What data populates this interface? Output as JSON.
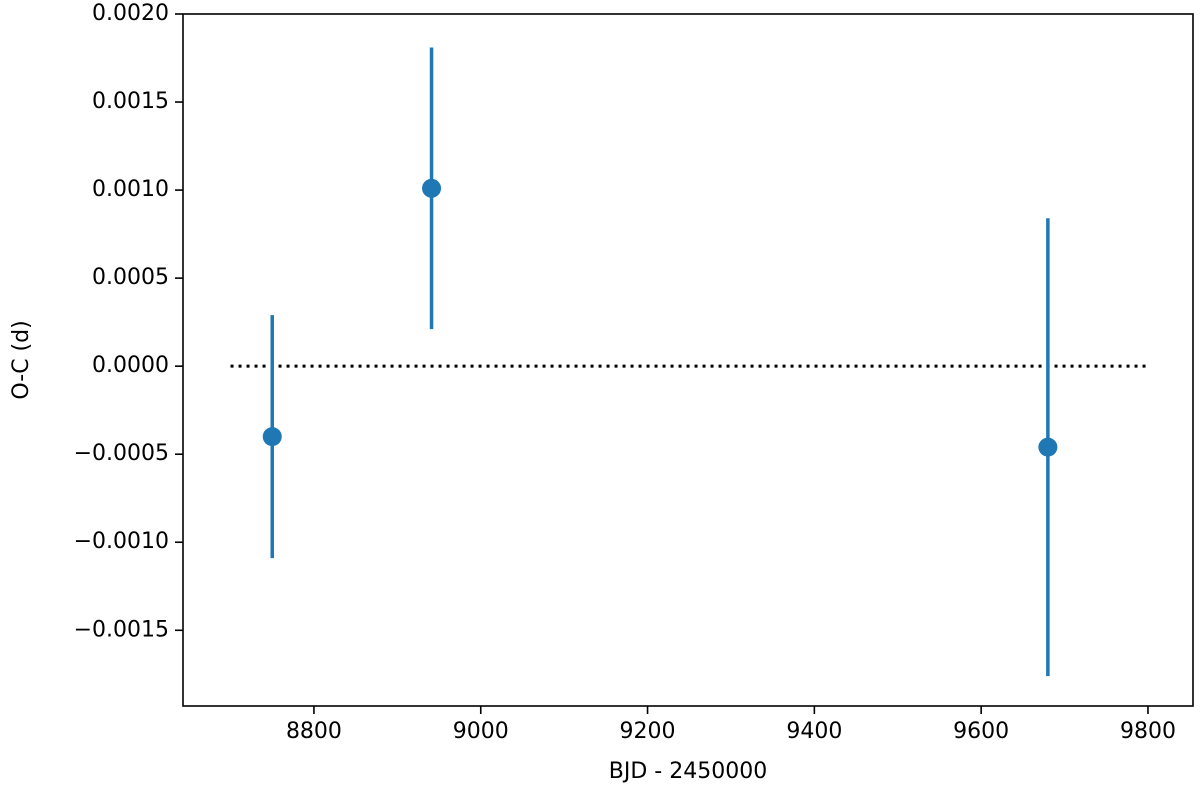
{
  "chart_data": {
    "type": "errorbar",
    "xlabel": "BJD - 2450000",
    "ylabel": "O-C (d)",
    "x": [
      8750,
      8941,
      9680
    ],
    "y": [
      -0.0004,
      0.00101,
      -0.00046
    ],
    "yerr": [
      0.00069,
      0.0008,
      0.0013
    ],
    "color": "#1f77b4",
    "reference_line": {
      "y": 0,
      "x": [
        8700,
        9800
      ],
      "color": "#000000",
      "style": "dotted"
    },
    "xlim": [
      8643,
      9854
    ],
    "xticks": [
      8800,
      9000,
      9200,
      9400,
      9600,
      9800
    ],
    "ylim": [
      -0.00193,
      0.002
    ],
    "yticks": [
      {
        "value": -0.0015,
        "label": "−0.0015"
      },
      {
        "value": -0.001,
        "label": "−0.0010"
      },
      {
        "value": -0.0005,
        "label": "−0.0005"
      },
      {
        "value": 0,
        "label": "0.0000"
      },
      {
        "value": 0.0005,
        "label": "0.0005"
      },
      {
        "value": 0.001,
        "label": "0.0010"
      },
      {
        "value": 0.0015,
        "label": "0.0015"
      },
      {
        "value": 0.002,
        "label": "0.0020"
      }
    ],
    "grid": false
  }
}
